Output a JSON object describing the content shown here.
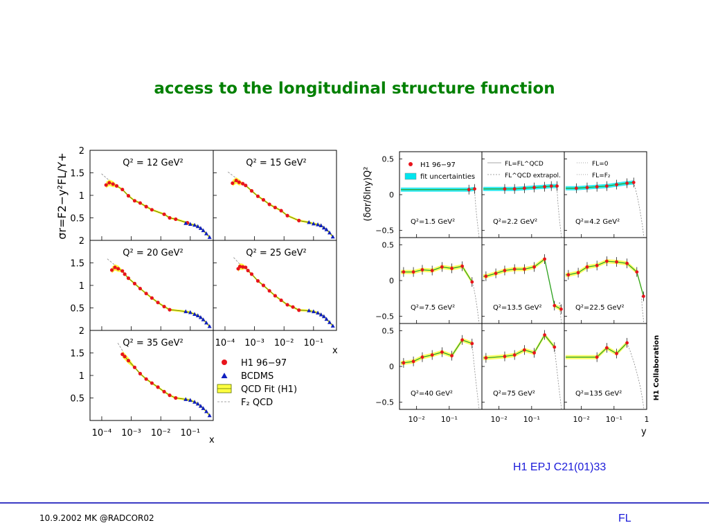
{
  "slide": {
    "title": "access to the longitudinal structure function",
    "citation": "H1 EPJ C21(01)33",
    "footer_left": "10.9.2002 MK @RADCOR02",
    "footer_right": "FL"
  },
  "colors": {
    "title": "#008000",
    "h1_points": "#e8141c",
    "bcdms_points": "#1020c0",
    "fit_band": "#ffff40",
    "fit_uncertainty": "#00e5ee",
    "fit_line": "#2aa02a",
    "footer_rule": "#3b3bc4",
    "citation": "#1a1ad9"
  },
  "chart_data": [
    {
      "type": "scatter",
      "ylabel": "σr=F2−y²FL/Y+",
      "xlabel": "x",
      "x_scale": "log",
      "xlim": [
        4e-05,
        0.6
      ],
      "ylim": [
        0,
        2
      ],
      "ytick_labels": [
        "0.5",
        "1",
        "1.5",
        "2"
      ],
      "xtick_labels": [
        "10⁻⁴",
        "10⁻³",
        "10⁻²",
        "10⁻¹"
      ],
      "legend": {
        "placement": "bottom-right",
        "entries": [
          "H1 96−97",
          "BCDMS",
          "QCD Fit (H1)",
          "F₂ QCD"
        ]
      },
      "panels": [
        {
          "label": "Q² = 12 GeV²",
          "h1": {
            "x": [
              0.00014,
              0.00018,
              0.00024,
              0.00032,
              0.0005,
              0.0008,
              0.0013,
              0.002,
              0.0032,
              0.005,
              0.013,
              0.02,
              0.032,
              0.08
            ],
            "y": [
              1.23,
              1.28,
              1.25,
              1.21,
              1.13,
              0.99,
              0.88,
              0.83,
              0.75,
              0.68,
              0.58,
              0.5,
              0.47,
              0.39
            ]
          },
          "bcdms": {
            "x": [
              0.07,
              0.1,
              0.14,
              0.18,
              0.225,
              0.275,
              0.35,
              0.45
            ],
            "y": [
              0.38,
              0.36,
              0.34,
              0.31,
              0.27,
              0.22,
              0.15,
              0.07
            ]
          }
        },
        {
          "label": "Q² = 15 GeV²",
          "h1": {
            "x": [
              0.00018,
              0.00024,
              0.0003,
              0.0004,
              0.0005,
              0.0008,
              0.0013,
              0.002,
              0.0032,
              0.005,
              0.008,
              0.013,
              0.032
            ],
            "y": [
              1.27,
              1.33,
              1.29,
              1.26,
              1.22,
              1.1,
              0.98,
              0.9,
              0.8,
              0.73,
              0.66,
              0.55,
              0.44
            ]
          },
          "bcdms": {
            "x": [
              0.07,
              0.1,
              0.14,
              0.18,
              0.225,
              0.275,
              0.35,
              0.45
            ],
            "y": [
              0.4,
              0.37,
              0.35,
              0.33,
              0.28,
              0.24,
              0.17,
              0.08
            ]
          }
        },
        {
          "label": "Q² = 20 GeV²",
          "h1": {
            "x": [
              0.00022,
              0.00028,
              0.00036,
              0.0005,
              0.0006,
              0.0008,
              0.0013,
              0.002,
              0.0032,
              0.005,
              0.008,
              0.013,
              0.02
            ],
            "y": [
              1.34,
              1.4,
              1.37,
              1.32,
              1.25,
              1.16,
              1.04,
              0.93,
              0.82,
              0.72,
              0.62,
              0.53,
              0.46
            ]
          },
          "bcdms": {
            "x": [
              0.07,
              0.1,
              0.14,
              0.18,
              0.225,
              0.275,
              0.35,
              0.45
            ],
            "y": [
              0.42,
              0.4,
              0.36,
              0.33,
              0.29,
              0.24,
              0.17,
              0.09
            ]
          }
        },
        {
          "label": "Q² = 25 GeV²",
          "h1": {
            "x": [
              0.00028,
              0.00032,
              0.0004,
              0.0005,
              0.0006,
              0.0008,
              0.0013,
              0.002,
              0.0032,
              0.005,
              0.008,
              0.013,
              0.02,
              0.032
            ],
            "y": [
              1.37,
              1.42,
              1.41,
              1.4,
              1.33,
              1.25,
              1.1,
              1.0,
              0.88,
              0.77,
              0.67,
              0.57,
              0.52,
              0.45
            ]
          },
          "bcdms": {
            "x": [
              0.07,
              0.1,
              0.14,
              0.18,
              0.225,
              0.275,
              0.35,
              0.45
            ],
            "y": [
              0.44,
              0.42,
              0.39,
              0.35,
              0.31,
              0.25,
              0.18,
              0.1
            ]
          }
        },
        {
          "label": "Q² = 35 GeV²",
          "h1": {
            "x": [
              0.0005,
              0.0006,
              0.0008,
              0.0013,
              0.002,
              0.0032,
              0.005,
              0.008,
              0.013,
              0.02,
              0.032
            ],
            "y": [
              1.47,
              1.42,
              1.33,
              1.18,
              1.04,
              0.92,
              0.83,
              0.74,
              0.64,
              0.56,
              0.5
            ]
          },
          "bcdms": {
            "x": [
              0.07,
              0.1,
              0.14,
              0.18,
              0.225,
              0.275,
              0.35,
              0.45
            ],
            "y": [
              0.47,
              0.45,
              0.41,
              0.37,
              0.32,
              0.27,
              0.2,
              0.11
            ]
          }
        }
      ]
    },
    {
      "type": "scatter",
      "ylabel": "(δσr/δlny)Q²",
      "xlabel": "y",
      "x_scale": "log",
      "xlim": [
        0.003,
        1
      ],
      "ylim": [
        -0.6,
        0.6
      ],
      "ytick_labels": [
        "−0.5",
        "0",
        "0.5"
      ],
      "xtick_labels": [
        "10⁻²",
        "10⁻¹",
        "1"
      ],
      "side_label": "H1 Collaboration",
      "legend_entries": [
        "H1 96−97",
        "fit uncertainties",
        "FL=FL^QCD",
        "FL^QCD extrapol.",
        "FL=0",
        "FL=F₂"
      ],
      "panels": [
        {
          "label": "Q²=1.5 GeV²",
          "y": [
            0.4,
            0.6
          ],
          "dsig": [
            0.07,
            0.08
          ]
        },
        {
          "label": "Q²=2.2 GeV²",
          "y": [
            0.015,
            0.03,
            0.06,
            0.12,
            0.25,
            0.4,
            0.6
          ],
          "dsig": [
            0.08,
            0.08,
            0.09,
            0.1,
            0.11,
            0.12,
            0.12
          ]
        },
        {
          "label": "Q²=4.2 GeV²",
          "y": [
            0.007,
            0.015,
            0.03,
            0.06,
            0.12,
            0.25,
            0.4
          ],
          "dsig": [
            0.09,
            0.1,
            0.11,
            0.12,
            0.14,
            0.16,
            0.17
          ]
        },
        {
          "label": "Q²=7.5 GeV²",
          "y": [
            0.004,
            0.008,
            0.015,
            0.03,
            0.06,
            0.12,
            0.25,
            0.5
          ],
          "dsig": [
            0.12,
            0.12,
            0.15,
            0.14,
            0.19,
            0.17,
            0.2,
            -0.02
          ]
        },
        {
          "label": "Q²=13.5 GeV²",
          "y": [
            0.004,
            0.008,
            0.015,
            0.03,
            0.06,
            0.12,
            0.25,
            0.5,
            0.8
          ],
          "dsig": [
            0.06,
            0.1,
            0.14,
            0.16,
            0.16,
            0.19,
            0.3,
            -0.35,
            -0.4
          ]
        },
        {
          "label": "Q²=22.5 GeV²",
          "y": [
            0.004,
            0.008,
            0.015,
            0.03,
            0.06,
            0.12,
            0.25,
            0.5,
            0.8
          ],
          "dsig": [
            0.08,
            0.11,
            0.19,
            0.21,
            0.27,
            0.26,
            0.24,
            0.12,
            -0.22
          ]
        },
        {
          "label": "Q²=40 GeV²",
          "y": [
            0.004,
            0.008,
            0.015,
            0.03,
            0.06,
            0.12,
            0.25,
            0.5
          ],
          "dsig": [
            0.05,
            0.07,
            0.13,
            0.16,
            0.2,
            0.15,
            0.37,
            0.32
          ]
        },
        {
          "label": "Q²=75 GeV²",
          "y": [
            0.004,
            0.015,
            0.03,
            0.06,
            0.12,
            0.25,
            0.5
          ],
          "dsig": [
            0.12,
            0.14,
            0.16,
            0.23,
            0.19,
            0.44,
            0.27
          ]
        },
        {
          "label": "Q²=135 GeV²",
          "y": [
            0.03,
            0.06,
            0.12,
            0.25
          ],
          "dsig": [
            0.13,
            0.26,
            0.18,
            0.33
          ]
        }
      ]
    }
  ]
}
